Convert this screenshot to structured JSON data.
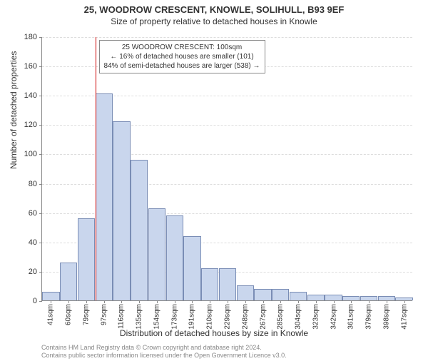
{
  "title_main": "25, WOODROW CRESCENT, KNOWLE, SOLIHULL, B93 9EF",
  "title_sub": "Size of property relative to detached houses in Knowle",
  "y_axis_label": "Number of detached properties",
  "x_axis_label": "Distribution of detached houses by size in Knowle",
  "chart": {
    "type": "histogram",
    "background_color": "#ffffff",
    "grid_color": "#dddddd",
    "axis_color": "#888888",
    "bar_fill": "#c9d6ed",
    "bar_stroke": "#7a8db5",
    "refline_color": "#cc0000",
    "ylim": [
      0,
      180
    ],
    "ytick_step": 20,
    "x_categories": [
      "41sqm",
      "60sqm",
      "79sqm",
      "97sqm",
      "116sqm",
      "135sqm",
      "154sqm",
      "173sqm",
      "191sqm",
      "210sqm",
      "229sqm",
      "248sqm",
      "267sqm",
      "285sqm",
      "304sqm",
      "323sqm",
      "342sqm",
      "361sqm",
      "379sqm",
      "398sqm",
      "417sqm"
    ],
    "values": [
      6,
      26,
      56,
      141,
      122,
      96,
      63,
      58,
      44,
      22,
      22,
      10,
      8,
      8,
      6,
      4,
      4,
      3,
      3,
      3,
      2
    ],
    "ref_index": 3,
    "title_fontsize": 13,
    "subtitle_fontsize": 12,
    "axis_label_fontsize": 12,
    "tick_fontsize": 10,
    "annotation_fontsize": 10
  },
  "annotation": {
    "line1": "25 WOODROW CRESCENT: 100sqm",
    "line2": "← 16% of detached houses are smaller (101)",
    "line3": "84% of semi-detached houses are larger (538) →"
  },
  "footer": {
    "line1": "Contains HM Land Registry data © Crown copyright and database right 2024.",
    "line2": "Contains public sector information licensed under the Open Government Licence v3.0."
  }
}
